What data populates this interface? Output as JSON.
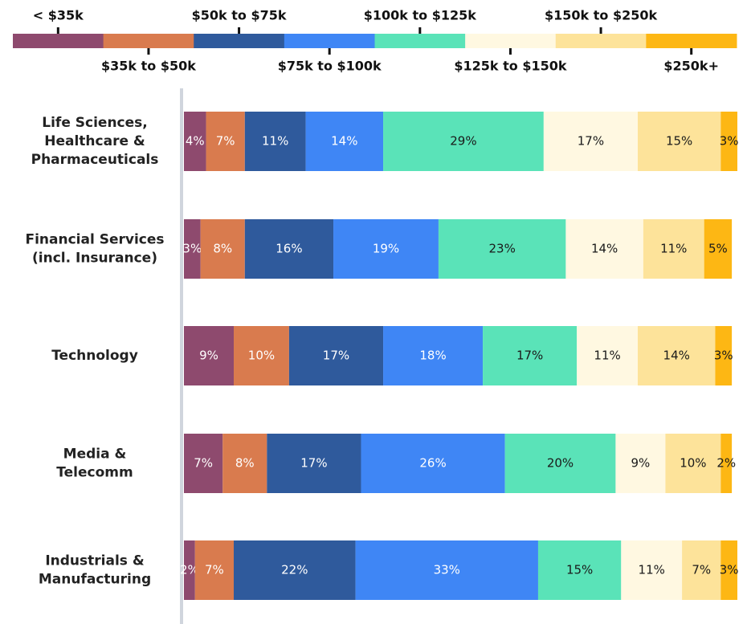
{
  "chart_data": {
    "type": "stacked_bar_horizontal",
    "categories": [
      [
        "Life Sciences,",
        "Healthcare &",
        "Pharmaceuticals"
      ],
      [
        "Financial Services",
        "(incl. Insurance)"
      ],
      [
        "Technology"
      ],
      [
        "Media &",
        "Telecomm"
      ],
      [
        "Industrials &",
        "Manufacturing"
      ]
    ],
    "xlim": [
      0,
      100
    ],
    "series": [
      {
        "name": "< $35k",
        "color": "#8E4A6E",
        "label_color": "#ffffff",
        "values": [
          4,
          3,
          9,
          7,
          2
        ],
        "value_labels": [
          "4%",
          "3%",
          "9%",
          "7%",
          "2%"
        ]
      },
      {
        "name": "$35k to $50k",
        "color": "#D97B4E",
        "label_color": "#ffffff",
        "values": [
          7,
          8,
          10,
          8,
          7
        ],
        "value_labels": [
          "7%",
          "8%",
          "10%",
          "8%",
          "7%"
        ]
      },
      {
        "name": "$50k to $75k",
        "color": "#2F5A9C",
        "label_color": "#ffffff",
        "values": [
          11,
          16,
          17,
          17,
          22
        ],
        "value_labels": [
          "11%",
          "16%",
          "17%",
          "17%",
          "22%"
        ]
      },
      {
        "name": "$75k to $100k",
        "color": "#3F86F5",
        "label_color": "#ffffff",
        "values": [
          14,
          19,
          18,
          26,
          33
        ],
        "value_labels": [
          "14%",
          "19%",
          "18%",
          "26%",
          "33%"
        ]
      },
      {
        "name": "$100k to $125k",
        "color": "#5AE3B8",
        "label_color": "#1a1a1a",
        "values": [
          29,
          23,
          17,
          20,
          15
        ],
        "value_labels": [
          "29%",
          "23%",
          "17%",
          "20%",
          "15%"
        ]
      },
      {
        "name": "$125k to $150k",
        "color": "#FFF8E1",
        "label_color": "#1a1a1a",
        "values": [
          17,
          14,
          11,
          9,
          11
        ],
        "value_labels": [
          "17%",
          "14%",
          "11%",
          "9%",
          "11%"
        ]
      },
      {
        "name": "$150k to $250k",
        "color": "#FDE39A",
        "label_color": "#1a1a1a",
        "values": [
          15,
          11,
          14,
          10,
          7
        ],
        "value_labels": [
          "15%",
          "11%",
          "14%",
          "10%",
          "7%"
        ]
      },
      {
        "name": "$250k+",
        "color": "#FDB714",
        "label_color": "#1a1a1a",
        "values": [
          3,
          5,
          3,
          2,
          3
        ],
        "value_labels": [
          "3%",
          "5%",
          "3%",
          "2%",
          "3%"
        ]
      }
    ]
  }
}
